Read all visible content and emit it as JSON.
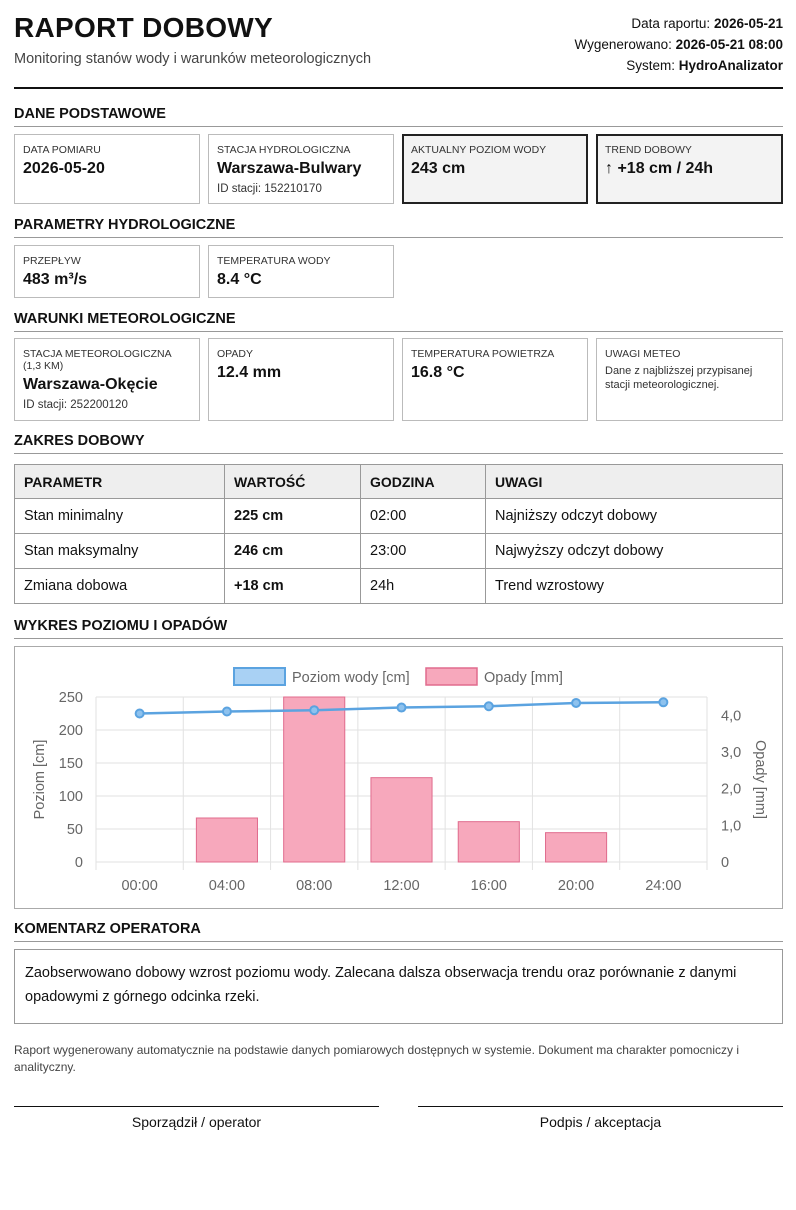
{
  "header": {
    "title": "RAPORT DOBOWY",
    "subtitle": "Monitoring stanów wody i warunków meteorologicznych",
    "report_date_label": "Data raportu:",
    "report_date": "2026-05-21",
    "generated_label": "Wygenerowano:",
    "generated": "2026-05-21 08:00",
    "system_label": "System:",
    "system": "HydroAnalizator"
  },
  "basic": {
    "section": "DANE PODSTAWOWE",
    "date_label": "DATA POMIARU",
    "date": "2026-05-20",
    "station_label": "STACJA HYDROLOGICZNA",
    "station": "Warszawa-Bulwary",
    "station_id": "ID stacji: 152210170",
    "level_label": "AKTUALNY POZIOM WODY",
    "level": "243 cm",
    "trend_label": "TREND DOBOWY",
    "trend": "↑ +18 cm / 24h"
  },
  "hydro": {
    "section": "PARAMETRY HYDROLOGICZNE",
    "flow_label": "PRZEPŁYW",
    "flow": "483 m³/s",
    "temp_label": "TEMPERATURA WODY",
    "temp": "8.4 °C"
  },
  "meteo": {
    "section": "WARUNKI METEOROLOGICZNE",
    "station_label": "STACJA METEOROLOGICZNA (1,3 KM)",
    "station": "Warszawa-Okęcie",
    "station_id": "ID stacji: 252200120",
    "rain_label": "OPADY",
    "rain": "12.4 mm",
    "air_label": "TEMPERATURA POWIETRZA",
    "air": "16.8 °C",
    "notes_label": "UWAGI METEO",
    "notes": "Dane z najbliższej przypisanej stacji meteorologicznej."
  },
  "range": {
    "section": "ZAKRES DOBOWY",
    "headers": [
      "PARAMETR",
      "WARTOŚĆ",
      "GODZINA",
      "UWAGI"
    ],
    "rows": [
      [
        "Stan minimalny",
        "225 cm",
        "02:00",
        "Najniższy odczyt dobowy"
      ],
      [
        "Stan maksymalny",
        "246 cm",
        "23:00",
        "Najwyższy odczyt dobowy"
      ],
      [
        "Zmiana dobowa",
        "+18 cm",
        "24h",
        "Trend wzrostowy"
      ]
    ]
  },
  "chart_section": "WYKRES POZIOMU I OPADÓW",
  "chart_data": {
    "type": "bar+line",
    "categories": [
      "00:00",
      "04:00",
      "08:00",
      "12:00",
      "16:00",
      "20:00",
      "24:00"
    ],
    "series": [
      {
        "name": "Poziom wody [cm]",
        "type": "line",
        "axis": "left",
        "color": "#5ba3e0",
        "values": [
          225,
          228,
          230,
          234,
          236,
          241,
          242
        ]
      },
      {
        "name": "Opady [mm]",
        "type": "bar",
        "axis": "right",
        "color": "#f7a8bc",
        "values": [
          0,
          1.2,
          4.5,
          2.3,
          1.1,
          0.8,
          0
        ]
      }
    ],
    "ylabel": "Poziom [cm]",
    "y2label": "Opady [mm]",
    "ylim": [
      0,
      250
    ],
    "y2lim": [
      0,
      4.5
    ],
    "yticks": [
      "0",
      "50",
      "100",
      "150",
      "200",
      "250"
    ],
    "y2ticks": [
      "0",
      "1,0",
      "2,0",
      "3,0",
      "4,0"
    ],
    "legend": "top-center",
    "grid": true
  },
  "comment": {
    "section": "KOMENTARZ OPERATORA",
    "text": "Zaobserwowano dobowy wzrost poziomu wody. Zalecana dalsza obserwacja trendu oraz porównanie z danymi opadowymi z górnego odcinka rzeki."
  },
  "footnote": "Raport wygenerowany automatycznie na podstawie danych pomiarowych dostępnych w systemie. Dokument ma charakter pomocniczy i analityczny.",
  "signatures": {
    "left": "Sporządził / operator",
    "right": "Podpis / akceptacja"
  }
}
